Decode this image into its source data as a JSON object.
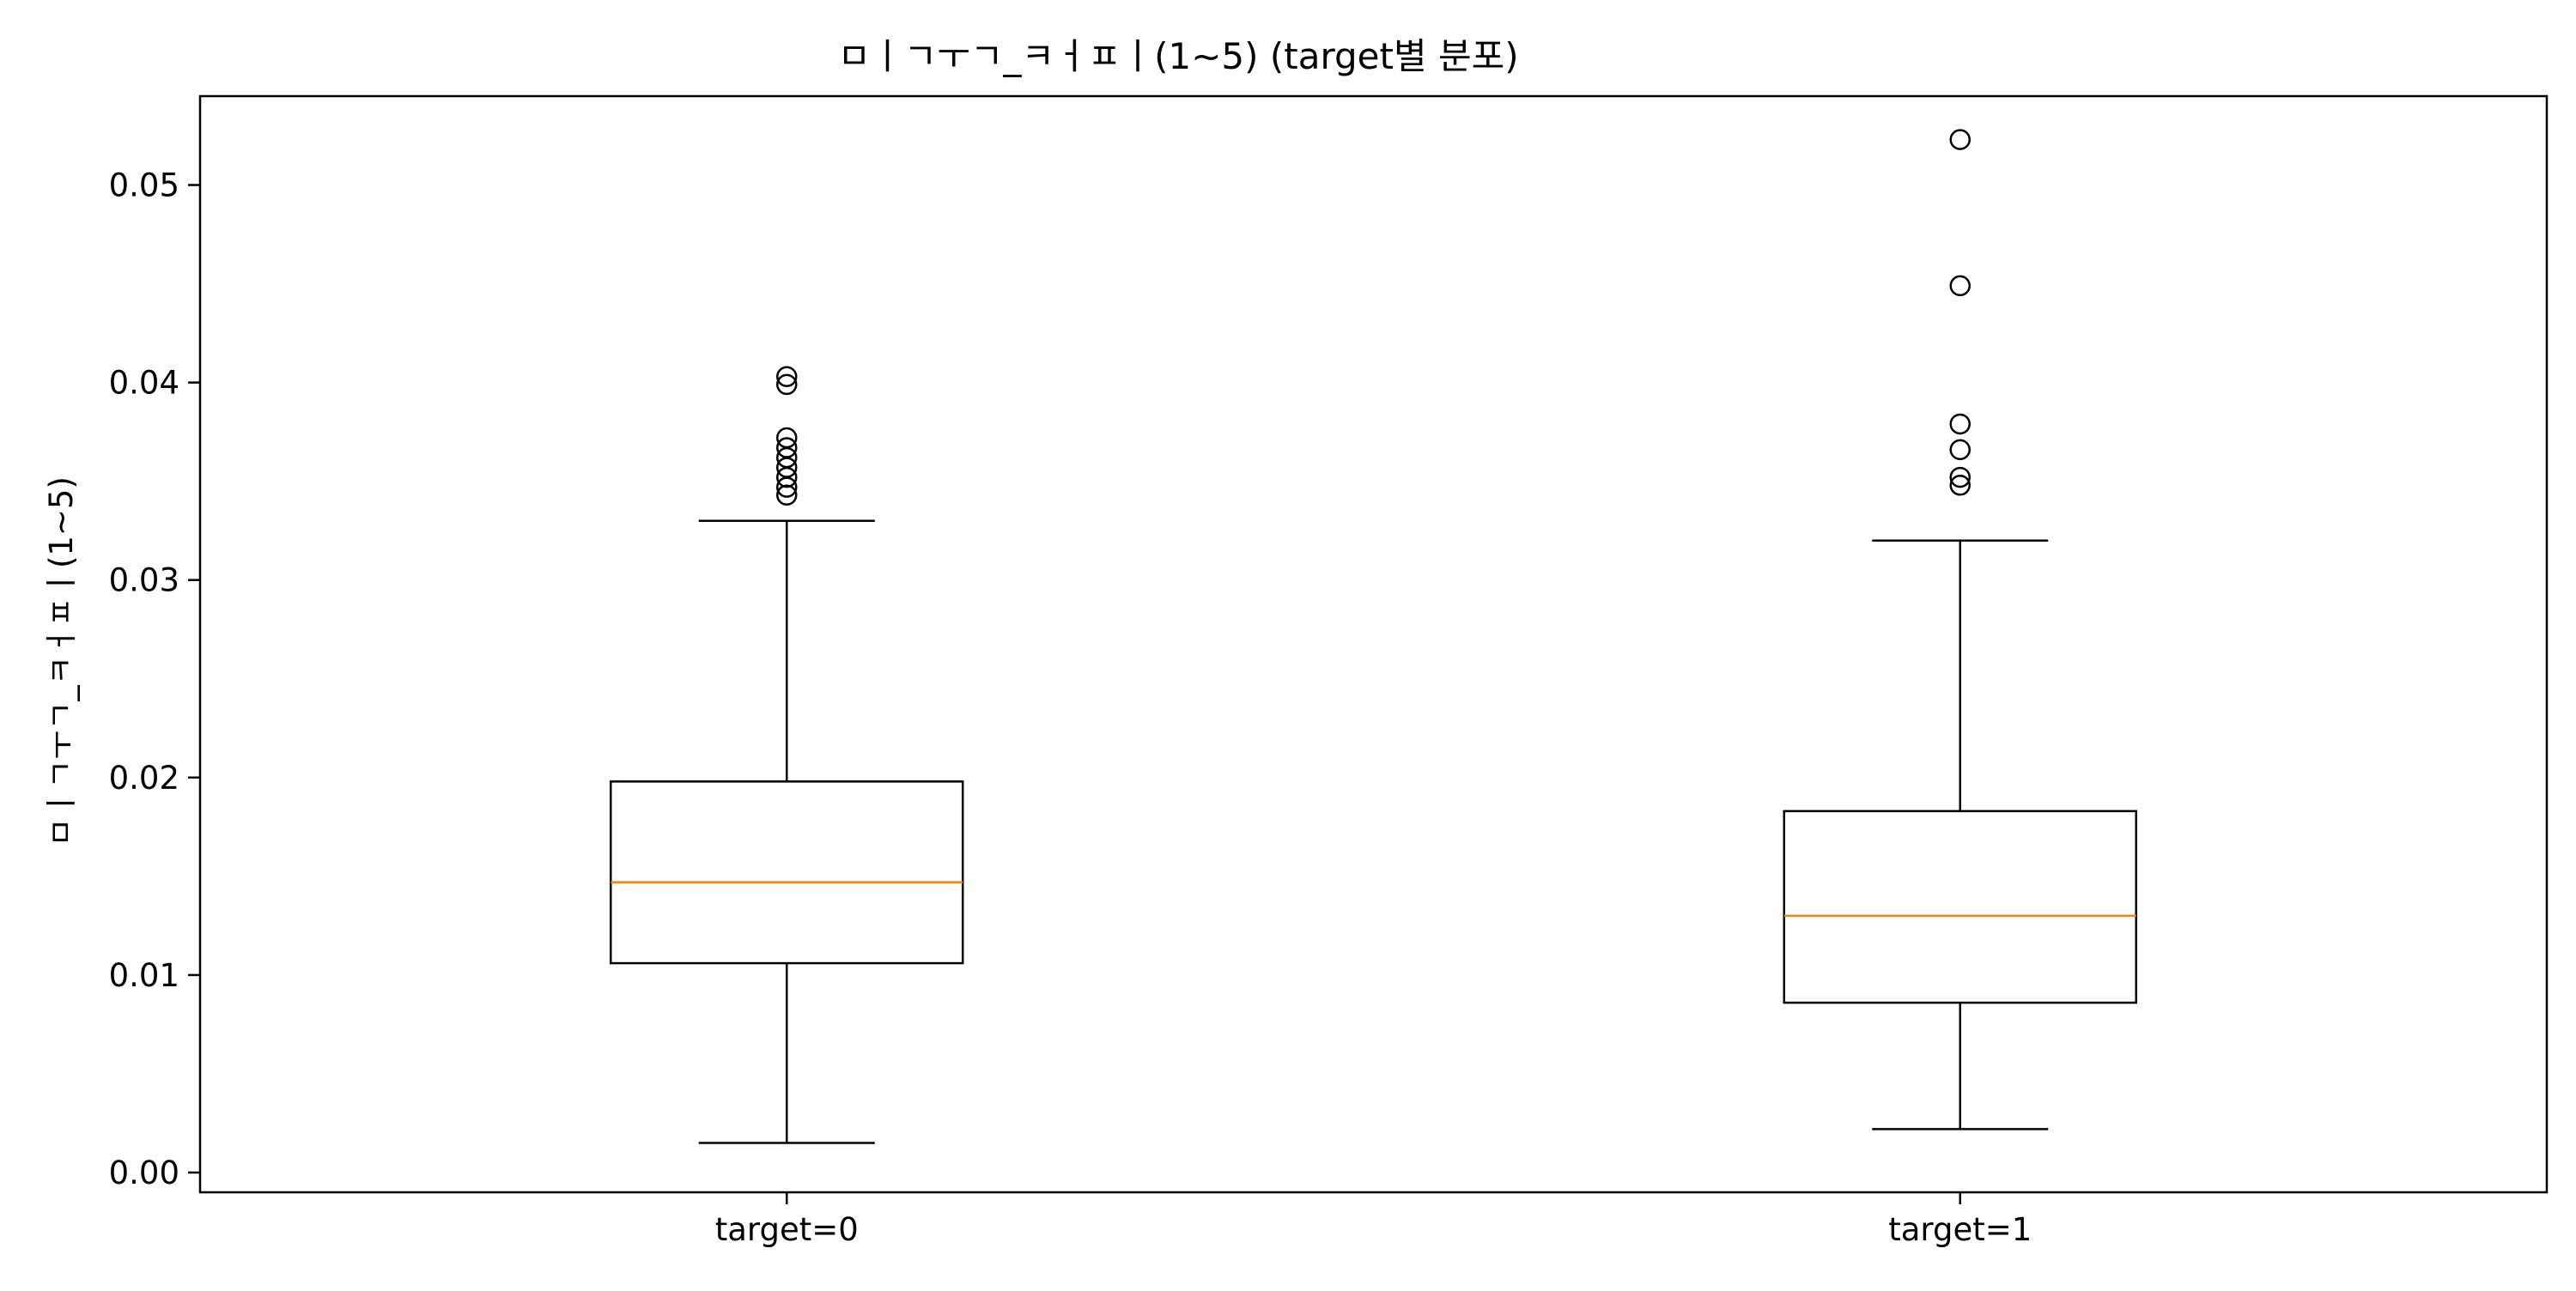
{
  "chart_data": {
    "type": "box",
    "title": "ㅁㅣㄱㅜㄱ_ㅋㅓㅍㅣ(1~5) (target별 분포)",
    "xlabel": "",
    "ylabel": "ㅁㅣㄱㅜㄱ_ㅋㅓㅍㅣ(1~5)",
    "ylim": [
      -0.001,
      0.0545
    ],
    "yticks": [
      0.0,
      0.01,
      0.02,
      0.03,
      0.04,
      0.05
    ],
    "ytick_labels": [
      "0.00",
      "0.01",
      "0.02",
      "0.03",
      "0.04",
      "0.05"
    ],
    "grid": false,
    "colors": {
      "box": "#000000",
      "median": "#ff7f0e",
      "outlier": "#000000"
    },
    "categories": [
      "target=0",
      "target=1"
    ],
    "boxes": [
      {
        "label": "target=0",
        "whisker_low": 0.0015,
        "q1": 0.0106,
        "median": 0.0147,
        "q3": 0.0198,
        "whisker_high": 0.033,
        "outliers": [
          0.0343,
          0.0347,
          0.0352,
          0.0357,
          0.0362,
          0.0367,
          0.0372,
          0.0399,
          0.0403
        ]
      },
      {
        "label": "target=1",
        "whisker_low": 0.0022,
        "q1": 0.0086,
        "median": 0.013,
        "q3": 0.0183,
        "whisker_high": 0.032,
        "outliers": [
          0.0348,
          0.0352,
          0.0366,
          0.0379,
          0.0449,
          0.0523
        ]
      }
    ]
  }
}
